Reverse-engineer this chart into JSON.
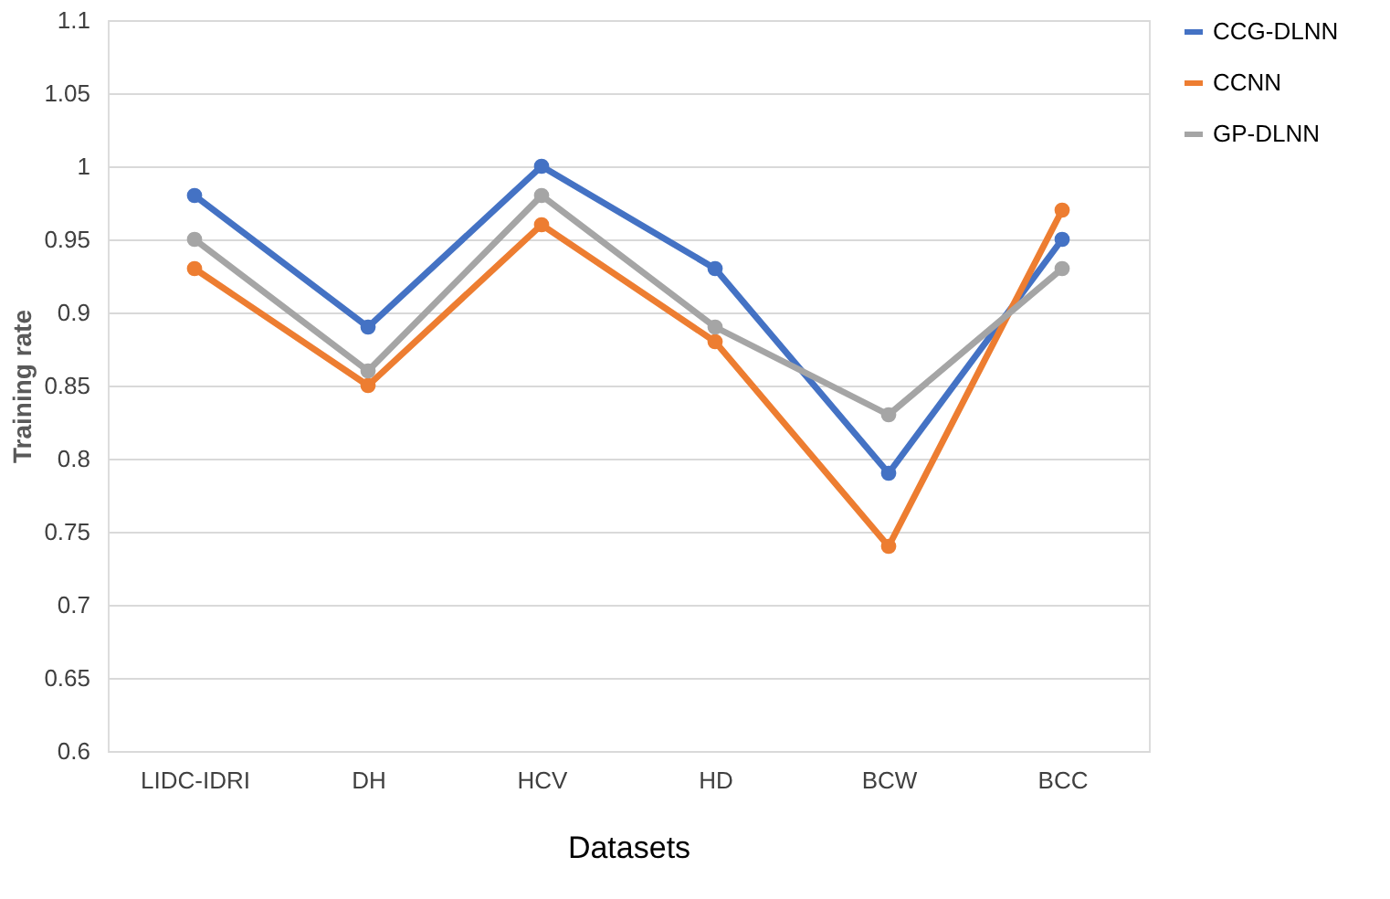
{
  "chart_data": {
    "type": "line",
    "xlabel": "Datasets",
    "ylabel": "Training rate",
    "categories": [
      "LIDC-IDRI",
      "DH",
      "HCV",
      "HD",
      "BCW",
      "BCC"
    ],
    "series": [
      {
        "name": "CCG-DLNN",
        "color": "#4472c4",
        "values": [
          0.98,
          0.89,
          1.0,
          0.93,
          0.79,
          0.95
        ]
      },
      {
        "name": "CCNN",
        "color": "#ed7d31",
        "values": [
          0.93,
          0.85,
          0.96,
          0.88,
          0.74,
          0.97
        ]
      },
      {
        "name": "GP-DLNN",
        "color": "#a5a5a5",
        "values": [
          0.95,
          0.86,
          0.98,
          0.89,
          0.83,
          0.93
        ]
      }
    ],
    "ylim": [
      0.6,
      1.1
    ],
    "yticks": [
      0.6,
      0.65,
      0.7,
      0.75,
      0.8,
      0.85,
      0.9,
      0.95,
      1,
      1.05,
      1.1
    ],
    "grid": "y",
    "legend": "right",
    "marker": "circle",
    "line_style": "solid"
  }
}
